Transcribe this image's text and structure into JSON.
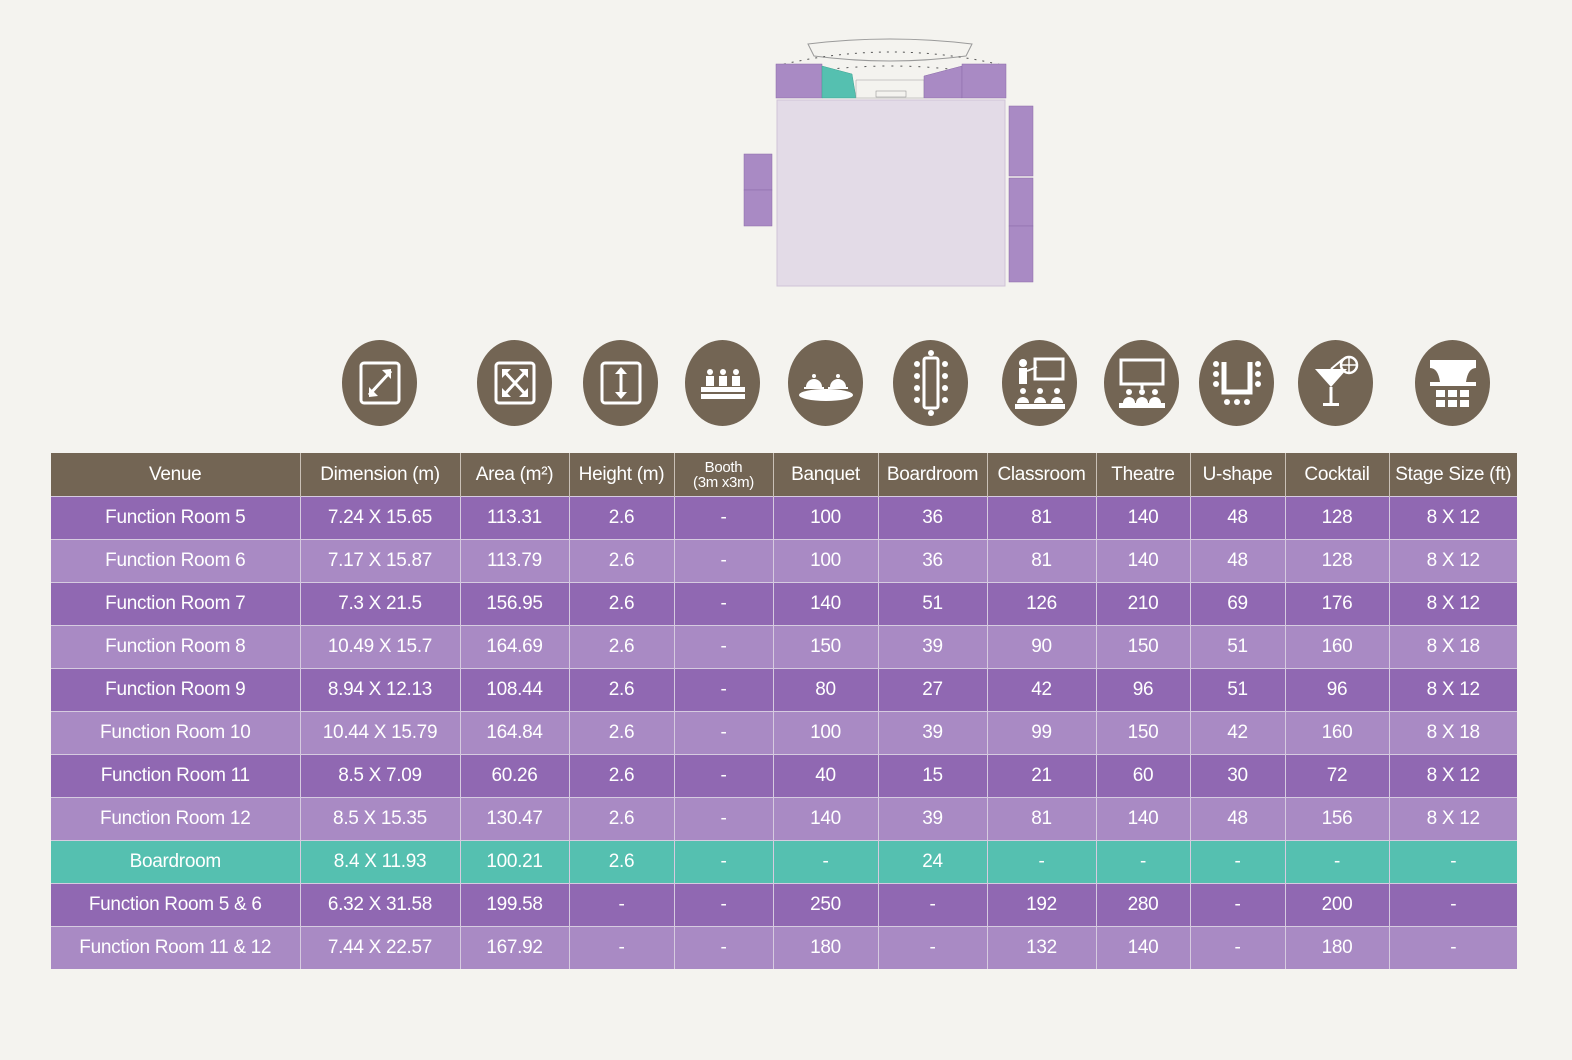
{
  "colors": {
    "header_bg": "#736554",
    "row_dark": "#9068b2",
    "row_light": "#a98ac4",
    "row_highlight": "#55c0b0",
    "page_bg": "#f4f3ef",
    "floor_main": "#e3dbe7",
    "floor_room": "#a98ac4",
    "floor_highlight": "#55c0b0"
  },
  "icons": [
    {
      "name": "dimension-icon",
      "column": "Dimension (m)"
    },
    {
      "name": "area-icon",
      "column": "Area (m²)"
    },
    {
      "name": "height-icon",
      "column": "Height (m)"
    },
    {
      "name": "booth-icon",
      "column": "Booth (3m x3m)"
    },
    {
      "name": "banquet-icon",
      "column": "Banquet"
    },
    {
      "name": "boardroom-icon",
      "column": "Boardroom"
    },
    {
      "name": "classroom-icon",
      "column": "Classroom"
    },
    {
      "name": "theatre-icon",
      "column": "Theatre"
    },
    {
      "name": "u-shape-icon",
      "column": "U-shape"
    },
    {
      "name": "cocktail-icon",
      "column": "Cocktail"
    },
    {
      "name": "stage-icon",
      "column": "Stage Size (ft)"
    }
  ],
  "table": {
    "headers": {
      "venue": "Venue",
      "dimension": "Dimension (m)",
      "area": "Area (m²)",
      "height": "Height (m)",
      "booth_line1": "Booth",
      "booth_line2": "(3m x3m)",
      "banquet": "Banquet",
      "boardroom": "Boardroom",
      "classroom": "Classroom",
      "theatre": "Theatre",
      "ushape": "U-shape",
      "cocktail": "Cocktail",
      "stage": "Stage Size (ft)"
    },
    "rows": [
      {
        "venue": "Function Room 5",
        "dimension": "7.24 X 15.65",
        "area": "113.31",
        "height": "2.6",
        "booth": "-",
        "banquet": "100",
        "boardroom": "36",
        "classroom": "81",
        "theatre": "140",
        "ushape": "48",
        "cocktail": "128",
        "stage": "8 X 12"
      },
      {
        "venue": "Function Room 6",
        "dimension": "7.17 X 15.87",
        "area": "113.79",
        "height": "2.6",
        "booth": "-",
        "banquet": "100",
        "boardroom": "36",
        "classroom": "81",
        "theatre": "140",
        "ushape": "48",
        "cocktail": "128",
        "stage": "8 X 12"
      },
      {
        "venue": "Function Room 7",
        "dimension": "7.3 X 21.5",
        "area": "156.95",
        "height": "2.6",
        "booth": "-",
        "banquet": "140",
        "boardroom": "51",
        "classroom": "126",
        "theatre": "210",
        "ushape": "69",
        "cocktail": "176",
        "stage": "8 X 12"
      },
      {
        "venue": "Function Room 8",
        "dimension": "10.49 X 15.7",
        "area": "164.69",
        "height": "2.6",
        "booth": "-",
        "banquet": "150",
        "boardroom": "39",
        "classroom": "90",
        "theatre": "150",
        "ushape": "51",
        "cocktail": "160",
        "stage": "8 X 18"
      },
      {
        "venue": "Function Room 9",
        "dimension": "8.94 X 12.13",
        "area": "108.44",
        "height": "2.6",
        "booth": "-",
        "banquet": "80",
        "boardroom": "27",
        "classroom": "42",
        "theatre": "96",
        "ushape": "51",
        "cocktail": "96",
        "stage": "8 X 12"
      },
      {
        "venue": "Function Room 10",
        "dimension": "10.44 X 15.79",
        "area": "164.84",
        "height": "2.6",
        "booth": "-",
        "banquet": "100",
        "boardroom": "39",
        "classroom": "99",
        "theatre": "150",
        "ushape": "42",
        "cocktail": "160",
        "stage": "8 X 18"
      },
      {
        "venue": "Function Room 11",
        "dimension": "8.5 X 7.09",
        "area": "60.26",
        "height": "2.6",
        "booth": "-",
        "banquet": "40",
        "boardroom": "15",
        "classroom": "21",
        "theatre": "60",
        "ushape": "30",
        "cocktail": "72",
        "stage": "8 X 12"
      },
      {
        "venue": "Function Room 12",
        "dimension": "8.5 X 15.35",
        "area": "130.47",
        "height": "2.6",
        "booth": "-",
        "banquet": "140",
        "boardroom": "39",
        "classroom": "81",
        "theatre": "140",
        "ushape": "48",
        "cocktail": "156",
        "stage": "8 X 12"
      },
      {
        "venue": "Boardroom",
        "dimension": "8.4 X 11.93",
        "area": "100.21",
        "height": "2.6",
        "booth": "-",
        "banquet": "-",
        "boardroom": "24",
        "classroom": "-",
        "theatre": "-",
        "ushape": "-",
        "cocktail": "-",
        "stage": "-"
      },
      {
        "venue": "Function Room 5 & 6",
        "dimension": "6.32 X 31.58",
        "area": "199.58",
        "height": "-",
        "booth": "-",
        "banquet": "250",
        "boardroom": "-",
        "classroom": "192",
        "theatre": "280",
        "ushape": "-",
        "cocktail": "200",
        "stage": "-"
      },
      {
        "venue": "Function Room 11 & 12",
        "dimension": "7.44 X 22.57",
        "area": "167.92",
        "height": "-",
        "booth": "-",
        "banquet": "180",
        "boardroom": "-",
        "classroom": "132",
        "theatre": "140",
        "ushape": "-",
        "cocktail": "180",
        "stage": "-"
      }
    ]
  }
}
